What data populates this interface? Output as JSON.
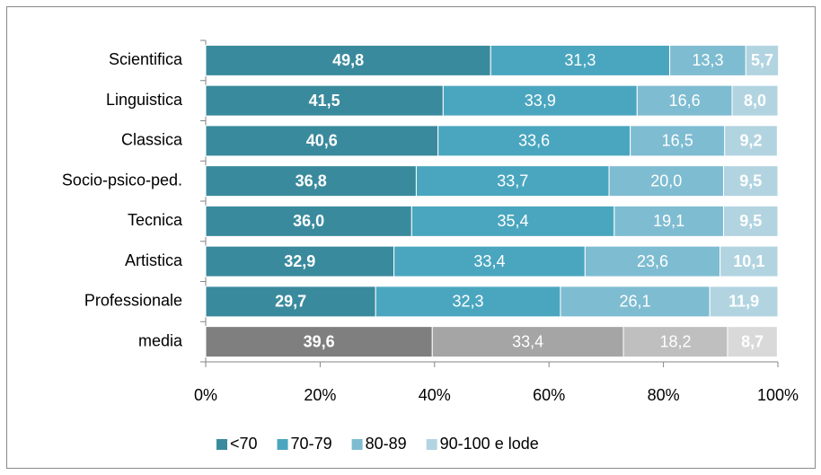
{
  "chart_data": {
    "type": "stacked_bar_horizontal",
    "categories": [
      "Scientifica",
      "Linguistica",
      "Classica",
      "Socio-psico-ped.",
      "Tecnica",
      "Artistica",
      "Professionale",
      "media"
    ],
    "series": [
      {
        "name": "<70",
        "color": "#3a8a9d",
        "label_bold": true,
        "colors": [
          "#3a8a9d",
          "#3a8a9d",
          "#3a8a9d",
          "#3a8a9d",
          "#3a8a9d",
          "#3a8a9d",
          "#3a8a9d",
          "#7f7f7f"
        ],
        "values": [
          49.8,
          41.5,
          40.6,
          36.8,
          36.0,
          32.9,
          29.7,
          39.6
        ],
        "value_labels": [
          "49,8",
          "41,5",
          "40,6",
          "36,8",
          "36,0",
          "32,9",
          "29,7",
          "39,6"
        ]
      },
      {
        "name": "70-79",
        "color": "#4aa6bf",
        "label_bold": false,
        "colors": [
          "#4aa6bf",
          "#4aa6bf",
          "#4aa6bf",
          "#4aa6bf",
          "#4aa6bf",
          "#4aa6bf",
          "#4aa6bf",
          "#a5a5a5"
        ],
        "values": [
          31.3,
          33.9,
          33.6,
          33.7,
          35.4,
          33.4,
          32.3,
          33.4
        ],
        "value_labels": [
          "31,3",
          "33,9",
          "33,6",
          "33,7",
          "35,4",
          "33,4",
          "32,3",
          "33,4"
        ]
      },
      {
        "name": "80-89",
        "color": "#7ebcd1",
        "label_bold": false,
        "colors": [
          "#7ebcd1",
          "#7ebcd1",
          "#7ebcd1",
          "#7ebcd1",
          "#7ebcd1",
          "#7ebcd1",
          "#7ebcd1",
          "#bfbfbf"
        ],
        "values": [
          13.3,
          16.6,
          16.5,
          20.0,
          19.1,
          23.6,
          26.1,
          18.2
        ],
        "value_labels": [
          "13,3",
          "16,6",
          "16,5",
          "20,0",
          "19,1",
          "23,6",
          "26,1",
          "18,2"
        ]
      },
      {
        "name": "90-100 e lode",
        "color": "#b2d4e1",
        "label_bold": true,
        "colors": [
          "#b2d4e1",
          "#b2d4e1",
          "#b2d4e1",
          "#b2d4e1",
          "#b2d4e1",
          "#b2d4e1",
          "#b2d4e1",
          "#d9d9d9"
        ],
        "values": [
          5.7,
          8.0,
          9.2,
          9.5,
          9.5,
          10.1,
          11.9,
          8.7
        ],
        "value_labels": [
          "5,7",
          "8,0",
          "9,2",
          "9,5",
          "9,5",
          "10,1",
          "11,9",
          "8,7"
        ]
      }
    ],
    "xlim": [
      0,
      100
    ],
    "xticks": [
      {
        "value": 0,
        "label": "0%"
      },
      {
        "value": 20,
        "label": "20%"
      },
      {
        "value": 40,
        "label": "40%"
      },
      {
        "value": 60,
        "label": "60%"
      },
      {
        "value": 80,
        "label": "80%"
      },
      {
        "value": 100,
        "label": "100%"
      }
    ],
    "legend": "bottom"
  }
}
